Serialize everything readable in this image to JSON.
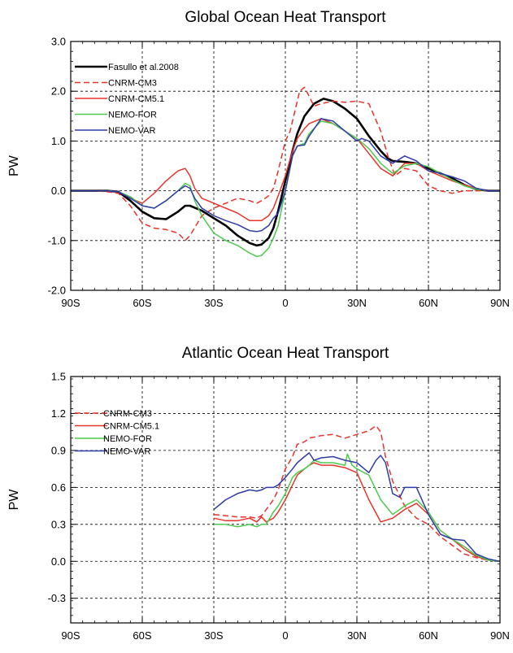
{
  "chart_data": [
    {
      "type": "line",
      "title": "Global Ocean Heat Transport",
      "ylabel": "PW",
      "xlabel": "",
      "xlim": [
        -90,
        90
      ],
      "ylim": [
        -2.0,
        3.0
      ],
      "x_ticks": [
        -90,
        -60,
        -30,
        0,
        30,
        60,
        90
      ],
      "x_tick_labels": [
        "90S",
        "60S",
        "30S",
        "0",
        "30N",
        "60N",
        "90N"
      ],
      "y_ticks": [
        -2.0,
        -1.0,
        0.0,
        1.0,
        2.0,
        3.0
      ],
      "y_tick_labels": [
        "-2.0",
        "-1.0",
        "0.0",
        "1.0",
        "2.0",
        "3.0"
      ],
      "grid": true,
      "legend_position": "top-left",
      "series": [
        {
          "name": "Fasullo et al.2008",
          "color": "#000000",
          "dash": "solid",
          "width": 2.6,
          "x": [
            -90,
            -80,
            -75,
            -70,
            -65,
            -60,
            -55,
            -50,
            -45,
            -42,
            -40,
            -35,
            -30,
            -25,
            -20,
            -15,
            -12,
            -10,
            -7,
            -5,
            -3,
            0,
            3,
            5,
            8,
            12,
            16,
            20,
            25,
            30,
            35,
            40,
            43,
            45,
            50,
            55,
            60,
            65,
            70,
            75,
            80,
            85,
            90
          ],
          "y": [
            0,
            0,
            0,
            -0.02,
            -0.2,
            -0.42,
            -0.55,
            -0.57,
            -0.42,
            -0.3,
            -0.3,
            -0.4,
            -0.55,
            -0.7,
            -0.9,
            -1.05,
            -1.1,
            -1.08,
            -0.95,
            -0.75,
            -0.4,
            0.2,
            0.8,
            1.15,
            1.5,
            1.75,
            1.85,
            1.8,
            1.65,
            1.45,
            1.1,
            0.8,
            0.65,
            0.6,
            0.58,
            0.55,
            0.45,
            0.35,
            0.25,
            0.12,
            0.03,
            0,
            0
          ]
        },
        {
          "name": "CNRM-CM3",
          "color": "#e8332a",
          "dash": "dashed",
          "width": 1.5,
          "x": [
            -90,
            -80,
            -75,
            -70,
            -65,
            -60,
            -55,
            -50,
            -45,
            -42,
            -40,
            -35,
            -30,
            -25,
            -20,
            -15,
            -12,
            -10,
            -7,
            -5,
            -3,
            0,
            2,
            4,
            6,
            8,
            10,
            12,
            15,
            20,
            25,
            30,
            35,
            40,
            43,
            46,
            50,
            55,
            60,
            65,
            70,
            75,
            80,
            85,
            90
          ],
          "y": [
            0,
            0,
            -0.02,
            -0.05,
            -0.3,
            -0.65,
            -0.75,
            -0.78,
            -0.85,
            -1.0,
            -0.9,
            -0.5,
            -0.35,
            -0.25,
            -0.15,
            -0.2,
            -0.25,
            -0.2,
            -0.1,
            0.05,
            0.4,
            1.0,
            1.2,
            1.6,
            2.0,
            2.08,
            1.9,
            1.7,
            1.75,
            1.8,
            1.78,
            1.8,
            1.75,
            1.2,
            0.7,
            0.3,
            0.45,
            0.4,
            0.1,
            0,
            -0.05,
            0,
            0,
            0,
            0
          ]
        },
        {
          "name": "CNRM-CM5.1",
          "color": "#e8332a",
          "dash": "solid",
          "width": 1.5,
          "x": [
            -90,
            -80,
            -75,
            -70,
            -65,
            -60,
            -55,
            -50,
            -45,
            -42,
            -40,
            -38,
            -35,
            -30,
            -25,
            -20,
            -15,
            -10,
            -7,
            -5,
            -3,
            0,
            3,
            5,
            8,
            10,
            15,
            20,
            25,
            30,
            35,
            40,
            45,
            50,
            55,
            60,
            65,
            70,
            75,
            80,
            85,
            90
          ],
          "y": [
            0,
            0,
            0,
            -0.02,
            -0.15,
            -0.25,
            -0.05,
            0.2,
            0.4,
            0.45,
            0.3,
            0.05,
            -0.15,
            -0.25,
            -0.35,
            -0.45,
            -0.6,
            -0.6,
            -0.5,
            -0.35,
            -0.1,
            0.3,
            0.8,
            1.05,
            1.25,
            1.35,
            1.45,
            1.35,
            1.2,
            1.05,
            0.75,
            0.45,
            0.3,
            0.55,
            0.55,
            0.4,
            0.3,
            0.2,
            0.12,
            0.05,
            0,
            0
          ]
        },
        {
          "name": "NEMO-FOR",
          "color": "#4dc94d",
          "dash": "solid",
          "width": 1.5,
          "x": [
            -90,
            -80,
            -75,
            -70,
            -65,
            -60,
            -55,
            -50,
            -45,
            -42,
            -40,
            -38,
            -35,
            -30,
            -25,
            -20,
            -15,
            -12,
            -10,
            -7,
            -5,
            -3,
            0,
            3,
            5,
            8,
            10,
            15,
            20,
            25,
            30,
            35,
            40,
            45,
            50,
            55,
            60,
            65,
            70,
            75,
            80,
            85,
            90
          ],
          "y": [
            0,
            0,
            0,
            -0.02,
            -0.12,
            -0.3,
            -0.35,
            -0.2,
            0,
            0.15,
            0.1,
            -0.2,
            -0.5,
            -0.85,
            -1.0,
            -1.1,
            -1.25,
            -1.32,
            -1.3,
            -1.15,
            -0.95,
            -0.7,
            0,
            0.7,
            0.9,
            0.95,
            1.15,
            1.4,
            1.35,
            1.2,
            1.05,
            0.85,
            0.55,
            0.35,
            0.5,
            0.55,
            0.48,
            0.35,
            0.22,
            0.1,
            0.03,
            0,
            0
          ]
        },
        {
          "name": "NEMO-VAR",
          "color": "#2f3ba8",
          "dash": "solid",
          "width": 1.5,
          "x": [
            -90,
            -80,
            -75,
            -70,
            -65,
            -60,
            -55,
            -50,
            -45,
            -42,
            -40,
            -38,
            -35,
            -30,
            -25,
            -20,
            -15,
            -12,
            -10,
            -7,
            -5,
            -3,
            0,
            3,
            5,
            8,
            10,
            15,
            20,
            25,
            30,
            32,
            35,
            40,
            45,
            50,
            55,
            60,
            65,
            70,
            75,
            80,
            85,
            90
          ],
          "y": [
            0,
            0,
            0,
            -0.02,
            -0.15,
            -0.3,
            -0.35,
            -0.2,
            0,
            0.1,
            0.05,
            -0.15,
            -0.35,
            -0.5,
            -0.6,
            -0.68,
            -0.8,
            -0.82,
            -0.8,
            -0.7,
            -0.55,
            -0.45,
            0,
            0.7,
            0.9,
            0.92,
            1.1,
            1.45,
            1.4,
            1.2,
            1.0,
            1.05,
            1.0,
            0.7,
            0.55,
            0.7,
            0.6,
            0.4,
            0.35,
            0.28,
            0.2,
            0.05,
            0,
            0
          ]
        }
      ]
    },
    {
      "type": "line",
      "title": "Atlantic Ocean Heat Transport",
      "ylabel": "PW",
      "xlabel": "",
      "xlim": [
        -90,
        90
      ],
      "ylim": [
        -0.5,
        1.5
      ],
      "x_ticks": [
        -90,
        -60,
        -30,
        0,
        30,
        60,
        90
      ],
      "x_tick_labels": [
        "90S",
        "60S",
        "30S",
        "0",
        "30N",
        "60N",
        "90N"
      ],
      "y_ticks": [
        -0.3,
        0.0,
        0.3,
        0.6,
        0.9,
        1.2,
        1.5
      ],
      "y_tick_labels": [
        "-0.3",
        "0.0",
        "0.3",
        "0.6",
        "0.9",
        "1.2",
        "1.5"
      ],
      "grid": true,
      "legend_position": "left",
      "series": [
        {
          "name": "CNRM-CM3",
          "color": "#e8332a",
          "dash": "dashed",
          "width": 1.5,
          "x": [
            -30,
            -25,
            -20,
            -15,
            -12,
            -10,
            -8,
            -5,
            -3,
            0,
            3,
            5,
            8,
            10,
            15,
            20,
            25,
            30,
            35,
            38,
            40,
            42,
            45,
            50,
            55,
            60,
            65,
            70,
            75,
            80,
            85,
            90
          ],
          "y": [
            0.38,
            0.37,
            0.36,
            0.36,
            0.35,
            0.37,
            0.42,
            0.5,
            0.58,
            0.75,
            0.85,
            0.95,
            0.97,
            1.0,
            1.02,
            1.03,
            1.0,
            1.03,
            1.06,
            1.1,
            1.05,
            0.85,
            0.65,
            0.45,
            0.35,
            0.3,
            0.2,
            0.13,
            0.06,
            0.03,
            0.01,
            0
          ]
        },
        {
          "name": "CNRM-CM5.1",
          "color": "#e8332a",
          "dash": "solid",
          "width": 1.5,
          "x": [
            -30,
            -25,
            -20,
            -15,
            -12,
            -10,
            -8,
            -5,
            -3,
            0,
            3,
            5,
            8,
            10,
            12,
            15,
            20,
            25,
            30,
            35,
            40,
            45,
            50,
            55,
            60,
            65,
            70,
            75,
            80,
            85,
            90
          ],
          "y": [
            0.35,
            0.33,
            0.33,
            0.35,
            0.32,
            0.36,
            0.32,
            0.35,
            0.4,
            0.5,
            0.62,
            0.7,
            0.75,
            0.78,
            0.8,
            0.78,
            0.78,
            0.76,
            0.72,
            0.5,
            0.32,
            0.35,
            0.42,
            0.47,
            0.38,
            0.22,
            0.18,
            0.1,
            0.04,
            0.01,
            0
          ]
        },
        {
          "name": "NEMO-FOR",
          "color": "#4dc94d",
          "dash": "solid",
          "width": 1.5,
          "x": [
            -30,
            -25,
            -20,
            -15,
            -12,
            -10,
            -8,
            -5,
            -3,
            0,
            3,
            5,
            8,
            10,
            12,
            15,
            20,
            25,
            26,
            28,
            30,
            35,
            40,
            45,
            50,
            55,
            60,
            65,
            70,
            75,
            80,
            85,
            90
          ],
          "y": [
            0.3,
            0.3,
            0.28,
            0.3,
            0.28,
            0.3,
            0.3,
            0.4,
            0.45,
            0.55,
            0.68,
            0.72,
            0.75,
            0.78,
            0.82,
            0.8,
            0.8,
            0.78,
            0.87,
            0.78,
            0.75,
            0.7,
            0.5,
            0.38,
            0.45,
            0.5,
            0.4,
            0.25,
            0.18,
            0.12,
            0.05,
            0.01,
            0
          ]
        },
        {
          "name": "NEMO-VAR",
          "color": "#2f3ba8",
          "dash": "solid",
          "width": 1.5,
          "x": [
            -30,
            -25,
            -20,
            -15,
            -12,
            -10,
            -8,
            -5,
            -3,
            0,
            3,
            5,
            8,
            10,
            12,
            15,
            20,
            25,
            30,
            35,
            38,
            40,
            42,
            45,
            48,
            50,
            55,
            60,
            65,
            70,
            75,
            80,
            85,
            90
          ],
          "y": [
            0.42,
            0.5,
            0.55,
            0.58,
            0.57,
            0.58,
            0.6,
            0.6,
            0.62,
            0.68,
            0.75,
            0.8,
            0.85,
            0.88,
            0.82,
            0.84,
            0.85,
            0.82,
            0.8,
            0.72,
            0.82,
            0.86,
            0.8,
            0.55,
            0.52,
            0.6,
            0.6,
            0.38,
            0.22,
            0.18,
            0.17,
            0.06,
            0.02,
            0
          ]
        }
      ]
    }
  ]
}
